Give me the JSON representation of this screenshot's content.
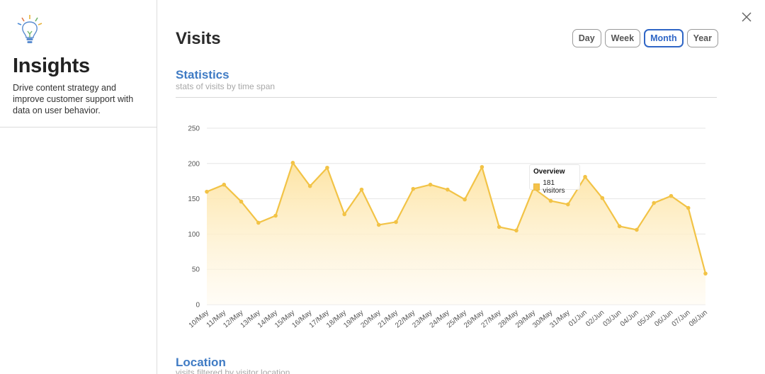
{
  "sidebar": {
    "title": "Insights",
    "description": "Drive content strategy and improve customer support with data on user behavior.",
    "logo_icon": "lightbulb-icon"
  },
  "close_icon": "close-icon",
  "main": {
    "title": "Visits",
    "timespan": [
      {
        "label": "Day",
        "active": false
      },
      {
        "label": "Week",
        "active": false
      },
      {
        "label": "Month",
        "active": true
      },
      {
        "label": "Year",
        "active": false
      }
    ],
    "statistics": {
      "title": "Statistics",
      "subtitle": "stats of visits by time span"
    },
    "location": {
      "title": "Location",
      "subtitle": "visits filtered by visitor location"
    }
  },
  "tooltip": {
    "title": "Overview",
    "value": "181 visitors"
  },
  "colors": {
    "accent": "#3f7bc4",
    "line": "#f2c346",
    "fill": "#fde7a6"
  },
  "chart_data": {
    "type": "area",
    "x": [
      "10/May",
      "11/May",
      "12/May",
      "13/May",
      "14/May",
      "15/May",
      "16/May",
      "17/May",
      "18/May",
      "19/May",
      "20/May",
      "21/May",
      "22/May",
      "23/May",
      "24/May",
      "25/May",
      "26/May",
      "27/May",
      "28/May",
      "29/May",
      "30/May",
      "31/May",
      "01/Jun",
      "02/Jun",
      "03/Jun",
      "04/Jun",
      "05/Jun",
      "06/Jun",
      "07/Jun",
      "08/Jun"
    ],
    "series": [
      {
        "values": [
          160,
          170,
          146,
          116,
          126,
          201,
          168,
          194,
          128,
          163,
          113,
          117,
          164,
          170,
          163,
          149,
          195,
          110,
          105,
          165,
          147,
          142,
          181,
          151,
          111,
          106,
          144,
          154,
          137,
          44
        ]
      }
    ],
    "yticks": [
      0,
      50,
      100,
      150,
      200,
      250
    ],
    "ylim": [
      0,
      250
    ],
    "grid": true,
    "legend": "none"
  }
}
